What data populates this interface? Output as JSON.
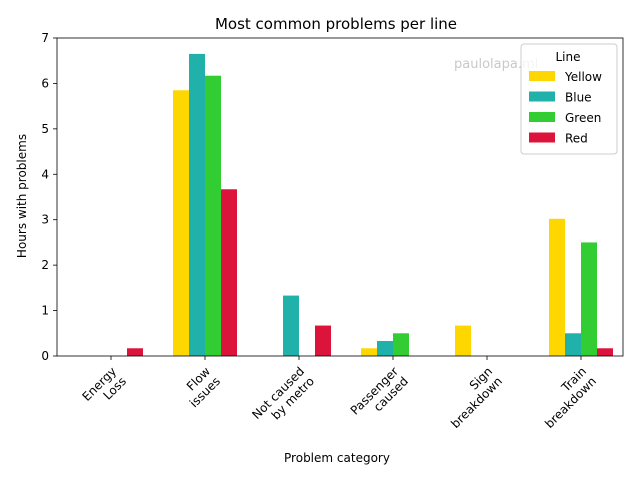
{
  "chart_data": {
    "type": "bar",
    "title": "Most common problems per line",
    "xlabel": "Problem category",
    "ylabel": "Hours with problems",
    "ylim": [
      0,
      7
    ],
    "yticks": [
      "0",
      "1",
      "2",
      "3",
      "4",
      "5",
      "6",
      "7"
    ],
    "grid": false,
    "categories": [
      [
        "Energy",
        "Loss"
      ],
      [
        "Flow",
        "issues"
      ],
      [
        "Not caused",
        "by metro"
      ],
      [
        "Passenger",
        "caused"
      ],
      [
        "Sign",
        "breakdown"
      ],
      [
        "Train",
        "breakdown"
      ]
    ],
    "legend": {
      "title": "Line",
      "placement": "top-right"
    },
    "series": [
      {
        "name": "Yellow",
        "color": "#FFD700",
        "values": [
          0,
          5.85,
          0,
          0.17,
          0.67,
          3.02
        ]
      },
      {
        "name": "Blue",
        "color": "#20B2AA",
        "values": [
          0,
          6.65,
          1.33,
          0.33,
          0,
          0.5
        ]
      },
      {
        "name": "Green",
        "color": "#32CD32",
        "values": [
          0,
          6.17,
          0,
          0.5,
          0,
          2.5
        ]
      },
      {
        "name": "Red",
        "color": "#DC143C",
        "values": [
          0.17,
          3.67,
          0.67,
          0,
          0,
          0.17
        ]
      }
    ]
  },
  "watermark": "paulolapa.ml"
}
